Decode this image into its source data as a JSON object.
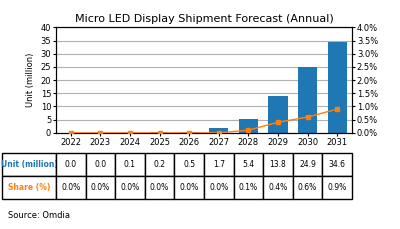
{
  "chart_data": {
    "type": "bar",
    "title": "Micro LED Display Shipment Forecast (Annual)",
    "categories": [
      "2022",
      "2023",
      "2024",
      "2025",
      "2026",
      "2027",
      "2028",
      "2029",
      "2030",
      "2031"
    ],
    "ylabel": "Unit (million)",
    "ylim": [
      0,
      40
    ],
    "yticks": [
      0,
      5,
      10,
      15,
      20,
      25,
      30,
      35,
      40
    ],
    "y2lim": [
      0,
      4.0
    ],
    "y2ticks": [
      {
        "value": 0.0,
        "label": "0.0%"
      },
      {
        "value": 0.5,
        "label": "0.5%"
      },
      {
        "value": 1.0,
        "label": "1.0%"
      },
      {
        "value": 1.5,
        "label": "1.5%"
      },
      {
        "value": 2.0,
        "label": "2.0%"
      },
      {
        "value": 2.5,
        "label": "2.5%"
      },
      {
        "value": 3.0,
        "label": "3.0%"
      },
      {
        "value": 3.5,
        "label": "3.5%"
      },
      {
        "value": 4.0,
        "label": "4.0%"
      }
    ],
    "grid": true,
    "series": [
      {
        "name": "Unit (million)",
        "type": "bar",
        "values": [
          0.0,
          0.0,
          0.1,
          0.2,
          0.5,
          1.7,
          5.4,
          13.8,
          24.9,
          34.6
        ],
        "value_labels": [
          "0.0",
          "0.0",
          "0.1",
          "0.2",
          "0.5",
          "1.7",
          "5.4",
          "13.8",
          "24.9",
          "34.6"
        ]
      },
      {
        "name": "Share (%)",
        "type": "line",
        "axis": "y2",
        "marker": "square",
        "values": [
          0.0,
          0.0,
          0.0,
          0.0,
          0.0,
          0.0,
          0.1,
          0.4,
          0.6,
          0.9
        ],
        "value_labels": [
          "0.0%",
          "0.0%",
          "0.0%",
          "0.0%",
          "0.0%",
          "0.0%",
          "0.1%",
          "0.4%",
          "0.6%",
          "0.9%"
        ]
      }
    ],
    "annotations": [
      "Source: Omdia"
    ]
  }
}
